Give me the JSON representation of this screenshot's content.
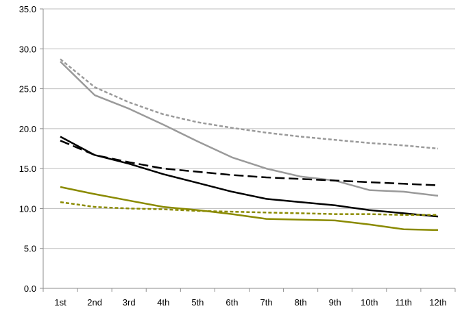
{
  "chart_data": {
    "type": "line",
    "title": "",
    "xlabel": "",
    "ylabel": "",
    "categories": [
      "1st",
      "2nd",
      "3rd",
      "4th",
      "5th",
      "6th",
      "7th",
      "8th",
      "9th",
      "10th",
      "11th",
      "12th"
    ],
    "y_ticks": [
      "0.0",
      "5.0",
      "10.0",
      "15.0",
      "20.0",
      "25.0",
      "30.0",
      "35.0"
    ],
    "ylim": [
      0,
      35
    ],
    "grid": true,
    "legend": "none",
    "series": [
      {
        "color": "#9a9a9a",
        "style": "dashed",
        "values": [
          28.7,
          25.2,
          23.3,
          21.8,
          20.8,
          20.1,
          19.5,
          19.0,
          18.6,
          18.2,
          17.9,
          17.5
        ]
      },
      {
        "color": "#9a9a9a",
        "style": "solid",
        "values": [
          28.4,
          24.2,
          22.5,
          20.5,
          18.4,
          16.4,
          15.0,
          14.0,
          13.5,
          12.3,
          12.1,
          11.6
        ]
      },
      {
        "color": "#000000",
        "style": "solid",
        "values": [
          19.0,
          16.7,
          15.6,
          14.3,
          13.2,
          12.1,
          11.2,
          10.8,
          10.4,
          9.8,
          9.4,
          9.0
        ]
      },
      {
        "color": "#000000",
        "style": "longdash",
        "values": [
          18.5,
          16.7,
          15.8,
          15.0,
          14.6,
          14.2,
          13.9,
          13.7,
          13.5,
          13.3,
          13.1,
          12.9
        ]
      },
      {
        "color": "#8a8a00",
        "style": "solid",
        "values": [
          12.7,
          11.8,
          11.0,
          10.2,
          9.8,
          9.3,
          8.7,
          8.6,
          8.5,
          8.0,
          7.4,
          7.3
        ]
      },
      {
        "color": "#8a8a00",
        "style": "dashed",
        "values": [
          10.8,
          10.2,
          10.0,
          9.9,
          9.7,
          9.6,
          9.5,
          9.4,
          9.3,
          9.3,
          9.2,
          9.2
        ]
      }
    ]
  }
}
